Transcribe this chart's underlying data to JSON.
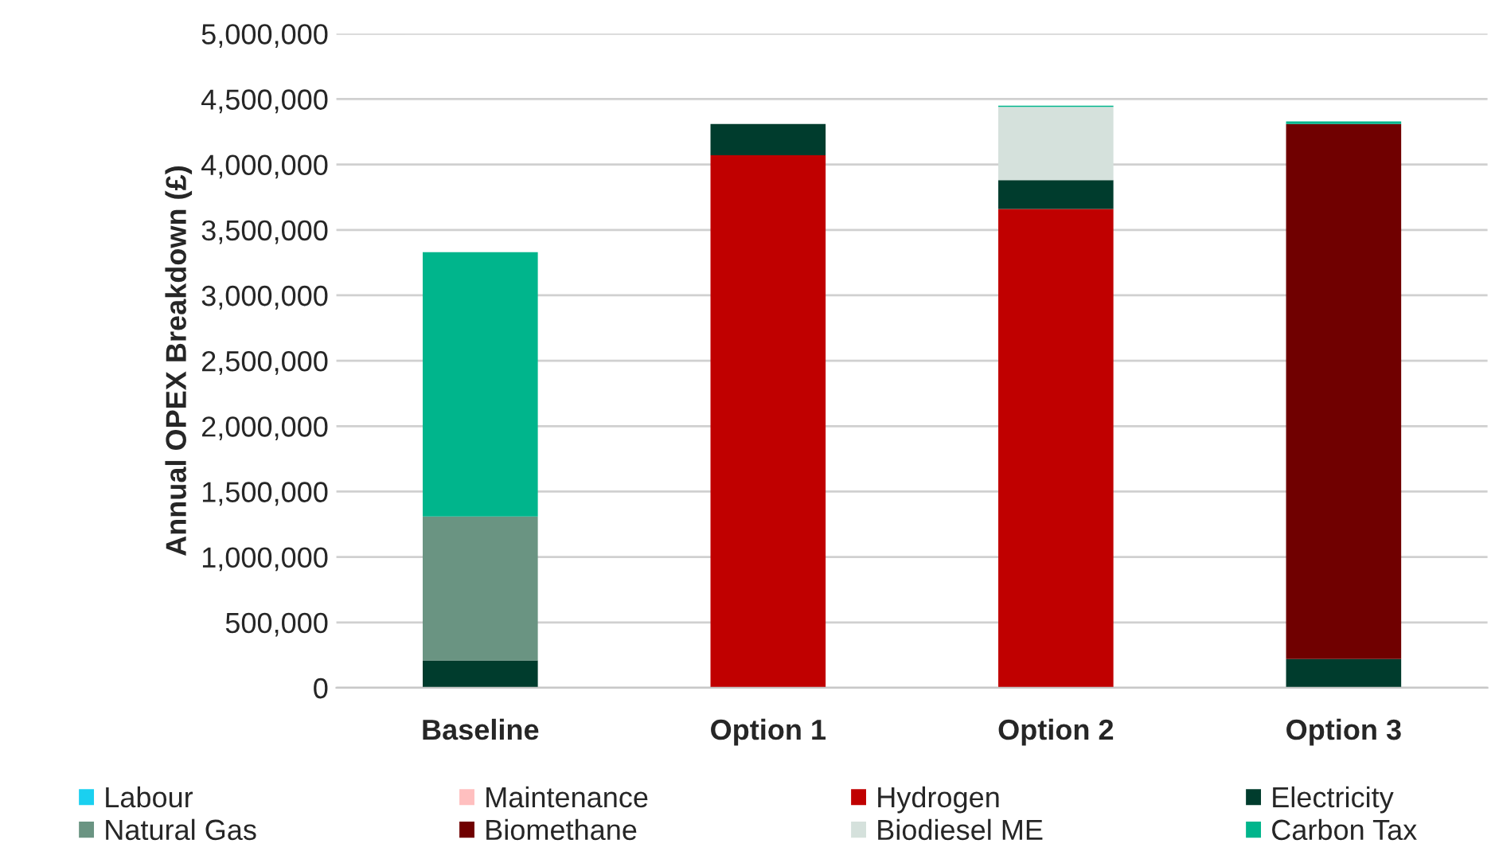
{
  "chart_data": {
    "type": "bar",
    "stacked": true,
    "ylabel": "Annual OPEX Breakdown (£)",
    "categories": [
      "Baseline",
      "Option 1",
      "Option 2",
      "Option 3"
    ],
    "series": [
      {
        "name": "Labour",
        "color": "#1ad0f0",
        "values": [
          null,
          null,
          null,
          null
        ]
      },
      {
        "name": "Maintenance",
        "color": "#ffbfbf",
        "values": [
          null,
          null,
          null,
          null
        ]
      },
      {
        "name": "Hydrogen",
        "color": "#c00000",
        "values": [
          0,
          4070000,
          3660000,
          0
        ]
      },
      {
        "name": "Electricity",
        "color": "#003c2d",
        "values": [
          210000,
          240000,
          220000,
          220000
        ]
      },
      {
        "name": "Natural Gas",
        "color": "#6a9482",
        "values": [
          1100000,
          0,
          0,
          0
        ]
      },
      {
        "name": "Biomethane",
        "color": "#700000",
        "values": [
          0,
          0,
          0,
          4090000
        ]
      },
      {
        "name": "Biodiesel ME",
        "color": "#d5e1dc",
        "values": [
          0,
          0,
          560000,
          0
        ]
      },
      {
        "name": "Carbon Tax",
        "color": "#00b58c",
        "values": [
          2020000,
          0,
          10000,
          20000
        ]
      }
    ],
    "ylim": [
      0,
      5000000
    ],
    "yticks": [
      0,
      {
        "value": 500000,
        "label": "500,000"
      },
      {
        "value": 1000000,
        "label": "1,000,000"
      },
      {
        "value": 1500000,
        "label": "1,500,000"
      },
      {
        "value": 2000000,
        "label": "2,000,000"
      },
      {
        "value": 2500000,
        "label": "2,500,000"
      },
      {
        "value": 3000000,
        "label": "3,000,000"
      },
      {
        "value": 3500000,
        "label": "3,500,000"
      },
      {
        "value": 4000000,
        "label": "4,000,000"
      },
      {
        "value": 4500000,
        "label": "4,500,000"
      },
      {
        "value": 5000000,
        "label": "5,000,000"
      }
    ],
    "grid": "y",
    "legend": "bottom"
  }
}
